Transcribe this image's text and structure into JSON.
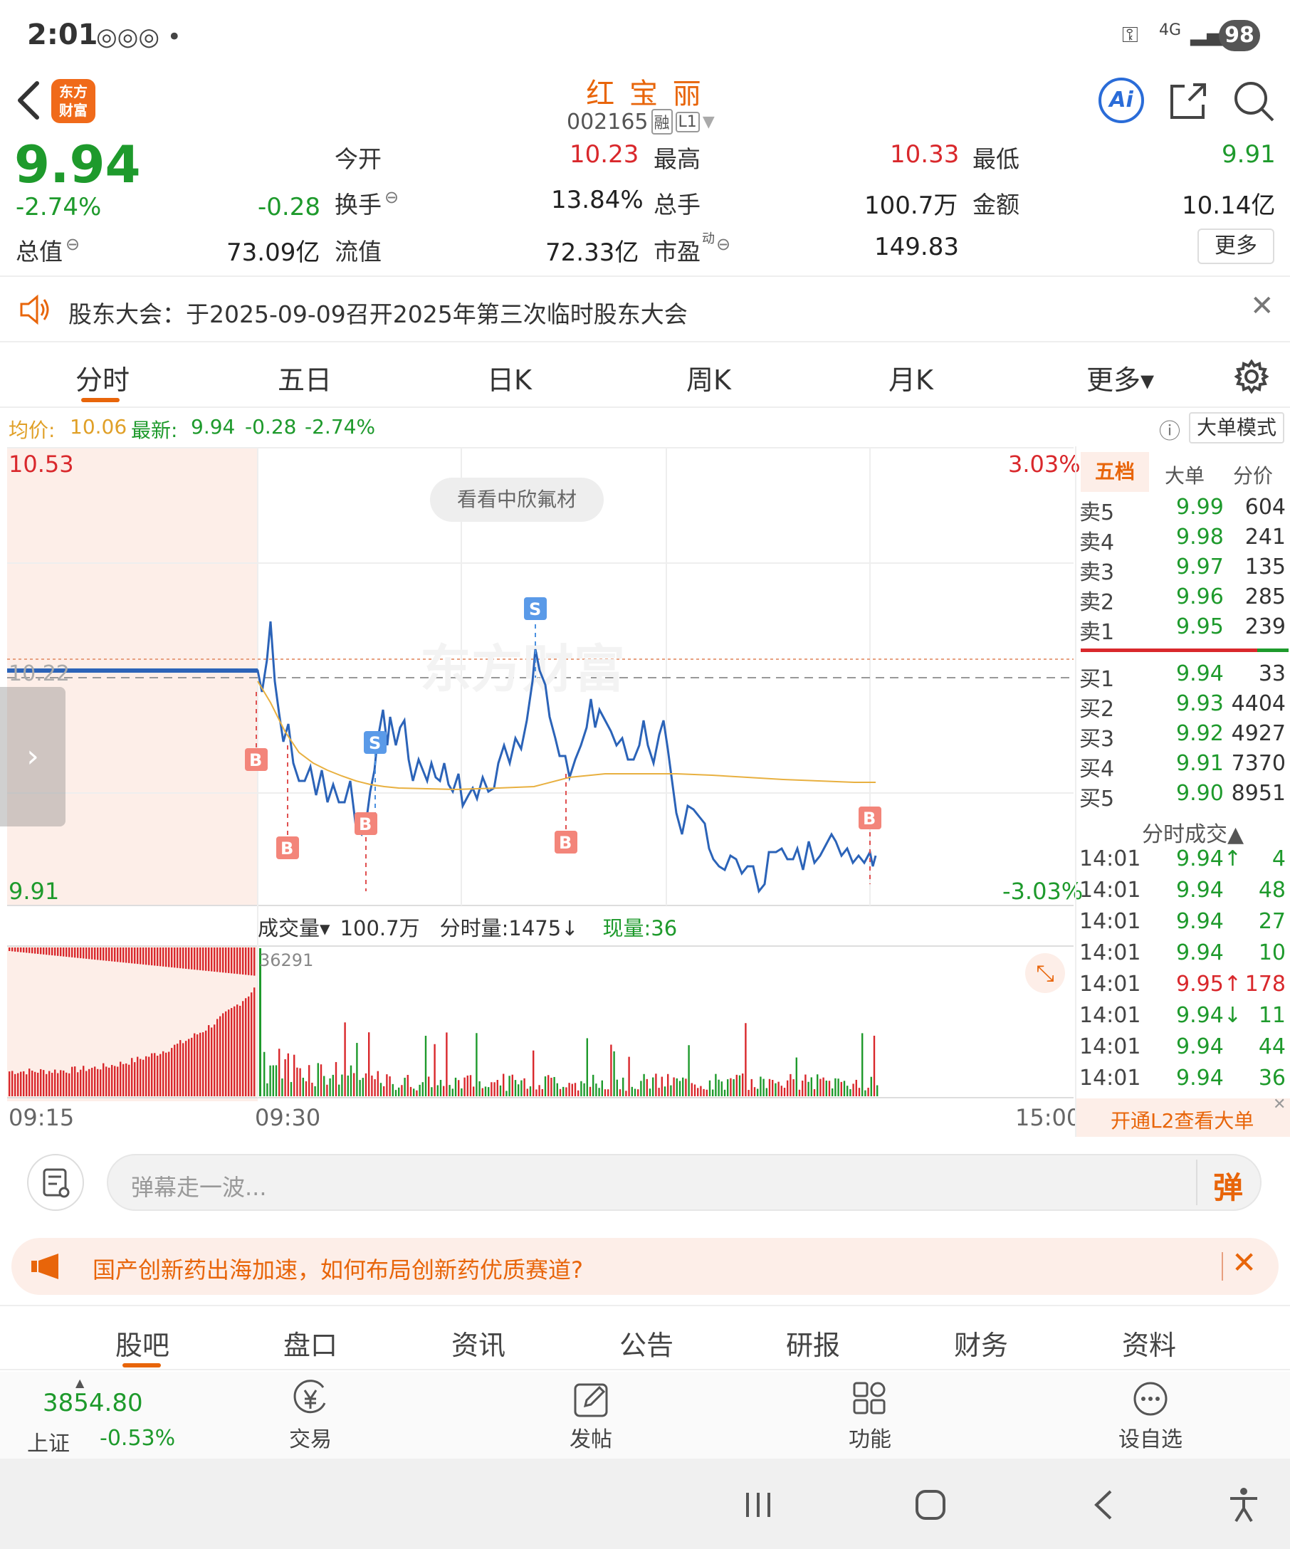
{
  "status": {
    "time": "2:01",
    "network": "4G",
    "battery": "98"
  },
  "header": {
    "app_logo": "东方\n财富",
    "stock_name": "红 宝 丽",
    "stock_code": "002165",
    "badge_rong": "融",
    "badge_level": "L1",
    "ai_label": "Ai"
  },
  "quote": {
    "price": "9.94",
    "change_pct": "-2.74%",
    "change": "-0.28",
    "total_value_label": "总值",
    "total_value": "73.09亿",
    "open_label": "今开",
    "open": "10.23",
    "high_label": "最高",
    "high": "10.33",
    "low_label": "最低",
    "low": "9.91",
    "turnover_label": "换手",
    "turnover": "13.84%",
    "volume_label": "总手",
    "volume": "100.7万",
    "amount_label": "金额",
    "amount": "10.14亿",
    "float_label": "流值",
    "float_value": "72.33亿",
    "pe_label": "市盈",
    "pe_sup": "动",
    "pe": "149.83",
    "more": "更多"
  },
  "notice": {
    "text": "股东大会：于2025-09-09召开2025年第三次临时股东大会"
  },
  "chart_tabs": [
    "分时",
    "五日",
    "日K",
    "周K",
    "月K",
    "更多▾"
  ],
  "infobar": {
    "avg_label": "均价:",
    "avg": "10.06",
    "latest_label": "最新:",
    "latest": "9.94",
    "latest_chg": "-0.28",
    "latest_pct": "-2.74%",
    "mode": "大单模式"
  },
  "chart": {
    "y_top": "10.53",
    "y_bottom": "9.91",
    "pct_top": "3.03%",
    "pct_bottom": "-3.03%",
    "ref_price": "10.22",
    "banner": "看看中欣氟材",
    "watermark": "东方财富",
    "volume_label": "成交量▾",
    "volume_total": "100.7万",
    "minute_vol": "分时量:1475↓",
    "current_vol": "现量:36",
    "vol_peak": "36291",
    "time_start": "09:15",
    "time_mid": "09:30",
    "time_end": "15:00",
    "markers": [
      "B",
      "B",
      "B",
      "S",
      "S",
      "B",
      "B"
    ]
  },
  "book": {
    "tabs": [
      "五档",
      "大单",
      "分价"
    ],
    "asks": [
      {
        "label": "卖5",
        "price": "9.99",
        "vol": "604"
      },
      {
        "label": "卖4",
        "price": "9.98",
        "vol": "241"
      },
      {
        "label": "卖3",
        "price": "9.97",
        "vol": "135"
      },
      {
        "label": "卖2",
        "price": "9.96",
        "vol": "285"
      },
      {
        "label": "卖1",
        "price": "9.95",
        "vol": "239"
      }
    ],
    "bids": [
      {
        "label": "买1",
        "price": "9.94",
        "vol": "33"
      },
      {
        "label": "买2",
        "price": "9.93",
        "vol": "4404"
      },
      {
        "label": "买3",
        "price": "9.92",
        "vol": "4927"
      },
      {
        "label": "买4",
        "price": "9.91",
        "vol": "7370"
      },
      {
        "label": "买5",
        "price": "9.90",
        "vol": "8951"
      }
    ],
    "trades_title": "分时成交▲",
    "trades": [
      {
        "time": "14:01",
        "price": "9.94↑",
        "vol": "4",
        "color": "green"
      },
      {
        "time": "14:01",
        "price": "9.94",
        "vol": "48",
        "color": "green"
      },
      {
        "time": "14:01",
        "price": "9.94",
        "vol": "27",
        "color": "green"
      },
      {
        "time": "14:01",
        "price": "9.94",
        "vol": "10",
        "color": "green"
      },
      {
        "time": "14:01",
        "price": "9.95↑",
        "vol": "178",
        "color": "red"
      },
      {
        "time": "14:01",
        "price": "9.94↓",
        "vol": "11",
        "color": "green"
      },
      {
        "time": "14:01",
        "price": "9.94",
        "vol": "44",
        "color": "green"
      },
      {
        "time": "14:01",
        "price": "9.94",
        "vol": "36",
        "color": "green"
      }
    ],
    "l2_promo": "开通L2查看大单"
  },
  "danmaku": {
    "placeholder": "弹幕走一波...",
    "send": "弹"
  },
  "promo": {
    "text": "国产创新药出海加速，如何布局创新药优质赛道?"
  },
  "bottom_tabs": [
    "股吧",
    "盘口",
    "资讯",
    "公告",
    "研报",
    "财务",
    "资料"
  ],
  "footer": {
    "index_value": "3854.80",
    "index_name": "上证",
    "index_chg": "-0.53%",
    "trade": "交易",
    "post": "发帖",
    "func": "功能",
    "watch": "设自选"
  },
  "colors": {
    "accent": "#e8650a",
    "up": "#d9282c",
    "down": "#1e9a2c",
    "price_line": "#2b63b8",
    "avg_line": "#e8b040"
  }
}
